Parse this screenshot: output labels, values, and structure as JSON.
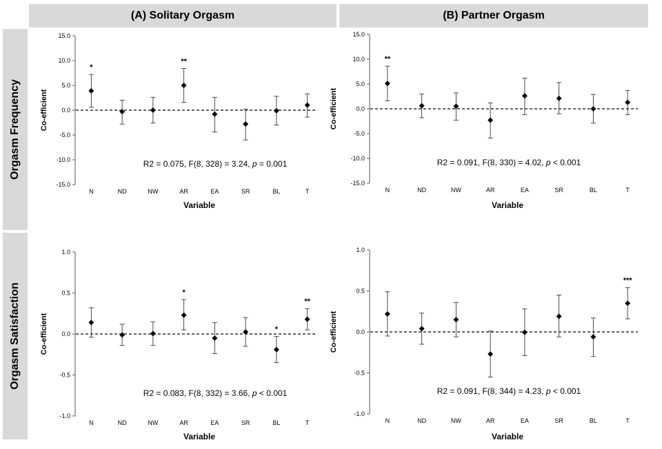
{
  "columns": [
    "(A) Solitary Orgasm",
    "(B) Partner Orgasm"
  ],
  "rows": [
    "Orgasm Frequency",
    "Orgasm Satisfaction"
  ],
  "chart_data": [
    {
      "type": "scatter",
      "title": "(A) Solitary Orgasm",
      "row": "Orgasm Frequency",
      "xlabel": "Variable",
      "ylabel": "Co-efficient",
      "categories": [
        "N",
        "ND",
        "NW",
        "AR",
        "EA",
        "SR",
        "BL",
        "T"
      ],
      "values": [
        3.9,
        -0.3,
        0.0,
        5.0,
        -0.8,
        -2.8,
        -0.1,
        1.0
      ],
      "lower": [
        0.6,
        -2.8,
        -2.6,
        1.6,
        -4.4,
        -6.0,
        -3.0,
        -1.4
      ],
      "upper": [
        7.2,
        2.0,
        2.6,
        8.4,
        2.6,
        0.2,
        2.8,
        3.3
      ],
      "significance": [
        "*",
        "",
        "",
        "**",
        "",
        "",
        "",
        ""
      ],
      "ylim": [
        -15,
        15
      ],
      "yticks": [
        "-15.0",
        "-10.0",
        "-5.0",
        "0.0",
        "5.0",
        "10.0",
        "15.0"
      ],
      "reference_line": 0,
      "annotation": {
        "pre": "R2 = 0.075, F(8, 328) = 3.24, ",
        "p": "p",
        "post": " = 0.001"
      },
      "grid": false
    },
    {
      "type": "scatter",
      "title": "(B) Partner Orgasm",
      "row": "Orgasm Frequency",
      "xlabel": "Variable",
      "ylabel": "Co-efficient",
      "categories": [
        "N",
        "ND",
        "NW",
        "AR",
        "EA",
        "SR",
        "BL",
        "T"
      ],
      "values": [
        5.1,
        0.6,
        0.5,
        -2.3,
        2.6,
        2.1,
        0.0,
        1.3
      ],
      "lower": [
        1.6,
        -1.8,
        -2.3,
        -5.9,
        -1.2,
        -1.0,
        -2.9,
        -1.2
      ],
      "upper": [
        8.6,
        3.0,
        3.2,
        1.2,
        6.2,
        5.3,
        2.9,
        3.7
      ],
      "significance": [
        "**",
        "",
        "",
        "",
        "",
        "",
        "",
        ""
      ],
      "ylim": [
        -15,
        15
      ],
      "yticks": [
        "-15.0",
        "-10.0",
        "-5.0",
        "0.0",
        "5.0",
        "10.0",
        "15.0"
      ],
      "reference_line": 0,
      "annotation": {
        "pre": "R2 = 0.091, F(8, 330) = 4.02, ",
        "p": "p",
        "post": " < 0.001"
      },
      "grid": false
    },
    {
      "type": "scatter",
      "title": "(A) Solitary Orgasm",
      "row": "Orgasm Satisfaction",
      "xlabel": "Variable",
      "ylabel": "Co-efficient",
      "categories": [
        "N",
        "ND",
        "NW",
        "AR",
        "EA",
        "SR",
        "BL",
        "T"
      ],
      "values": [
        0.14,
        -0.01,
        0.005,
        0.23,
        -0.05,
        0.025,
        -0.19,
        0.18
      ],
      "lower": [
        -0.04,
        -0.14,
        -0.14,
        0.05,
        -0.24,
        -0.15,
        -0.35,
        0.05
      ],
      "upper": [
        0.32,
        0.12,
        0.15,
        0.42,
        0.14,
        0.2,
        -0.03,
        0.31
      ],
      "significance": [
        "",
        "",
        "",
        "*",
        "",
        "",
        "*",
        "**"
      ],
      "ylim": [
        -1,
        1
      ],
      "yticks": [
        "-1.0",
        "-0.5",
        "0.0",
        "0.5",
        "1.0"
      ],
      "reference_line": 0,
      "annotation": {
        "pre": "R2 = 0.083, F(8, 332) = 3.66, ",
        "p": "p",
        "post": " < 0.001"
      },
      "grid": false
    },
    {
      "type": "scatter",
      "title": "(B) Partner Orgasm",
      "row": "Orgasm Satisfaction",
      "xlabel": "Variable",
      "ylabel": "Co-efficient",
      "categories": [
        "N",
        "ND",
        "NW",
        "AR",
        "EA",
        "SR",
        "BL",
        "T"
      ],
      "values": [
        0.22,
        0.04,
        0.15,
        -0.27,
        -0.005,
        0.19,
        -0.06,
        0.35
      ],
      "lower": [
        -0.05,
        -0.15,
        -0.06,
        -0.55,
        -0.29,
        -0.06,
        -0.3,
        0.16
      ],
      "upper": [
        0.49,
        0.23,
        0.36,
        0.01,
        0.28,
        0.45,
        0.17,
        0.54
      ],
      "significance": [
        "",
        "",
        "",
        "",
        "",
        "",
        "",
        "***"
      ],
      "ylim": [
        -1,
        1
      ],
      "yticks": [
        "-1.0",
        "-0.5",
        "0.0",
        "0.5",
        "1.0"
      ],
      "reference_line": 0,
      "annotation": {
        "pre": "R2 = 0.091, F(8, 344) = 4.23, ",
        "p": "p",
        "post": " < 0.001"
      },
      "grid": false
    }
  ]
}
